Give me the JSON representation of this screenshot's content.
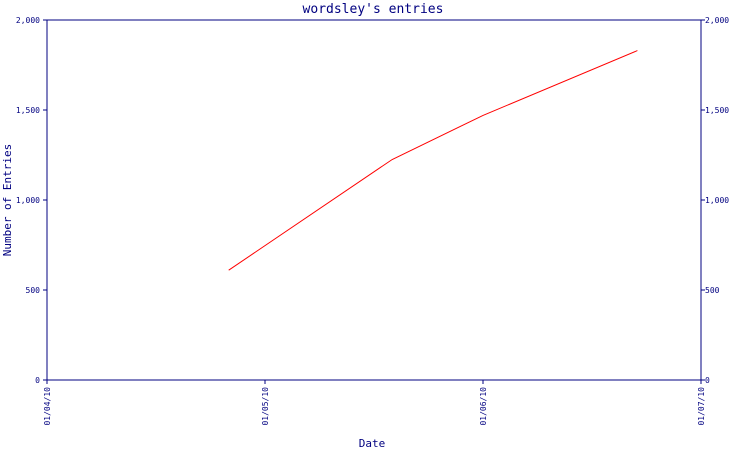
{
  "colors": {
    "axis": "#000080",
    "series": "#ff0000",
    "background": "#ffffff"
  },
  "chart_data": {
    "type": "line",
    "title": "wordsley's entries",
    "xlabel": "Date",
    "ylabel": "Number of Entries",
    "ylim": [
      0,
      2000
    ],
    "y_ticks": [
      0,
      500,
      1000,
      1500,
      2000
    ],
    "y_tick_labels": [
      "0",
      "500",
      "1,000",
      "1,500",
      "2,000"
    ],
    "x_ticks": [
      "2010-01-04",
      "2010-01-05",
      "2010-01-06",
      "2010-01-07"
    ],
    "x_tick_labels": [
      "01/04/10",
      "01/05/10",
      "01/06/10",
      "01/07/10"
    ],
    "xlim": [
      "2010-01-04",
      "2010-01-07"
    ],
    "grid": false,
    "series": [
      {
        "color": "#ff0000",
        "x": [
          "2010-01-04 20:00",
          "2010-01-05 14:00",
          "2010-01-06 00:00",
          "2010-01-06 17:00"
        ],
        "y": [
          610,
          1225,
          1470,
          1830
        ]
      }
    ]
  }
}
